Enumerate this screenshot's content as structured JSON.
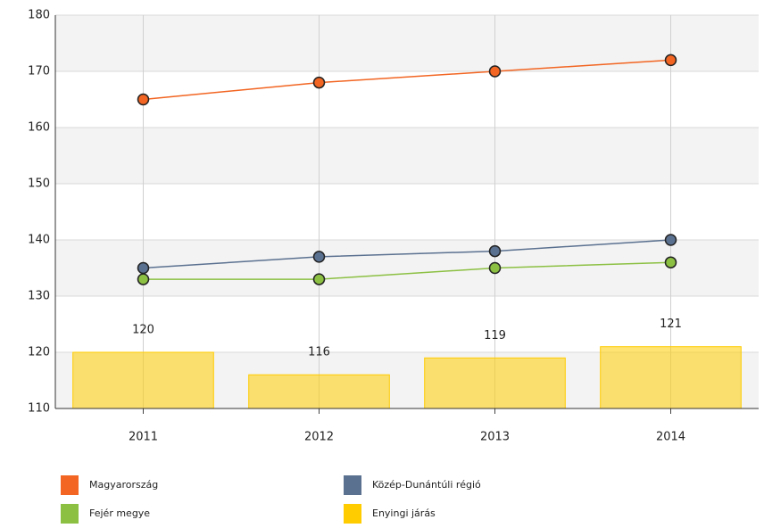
{
  "chart_data": {
    "type": "combo",
    "categories": [
      "2011",
      "2012",
      "2013",
      "2014"
    ],
    "series": [
      {
        "name": "Magyarország",
        "type": "line",
        "color": "#f26522",
        "values": [
          165,
          168,
          170,
          172
        ]
      },
      {
        "name": "Közép-Dunántúli régió",
        "type": "line",
        "color": "#5b7190",
        "values": [
          135,
          137,
          138,
          140
        ]
      },
      {
        "name": "Fejér megye",
        "type": "line",
        "color": "#8cc043",
        "values": [
          133,
          133,
          135,
          136
        ]
      },
      {
        "name": "Enyingi járás",
        "type": "bar",
        "color": "#ffcc00",
        "values": [
          120,
          116,
          119,
          121
        ]
      }
    ],
    "ylim": [
      110,
      180
    ],
    "yticks": [
      110,
      120,
      130,
      140,
      150,
      160,
      170,
      180
    ],
    "grid": true
  }
}
